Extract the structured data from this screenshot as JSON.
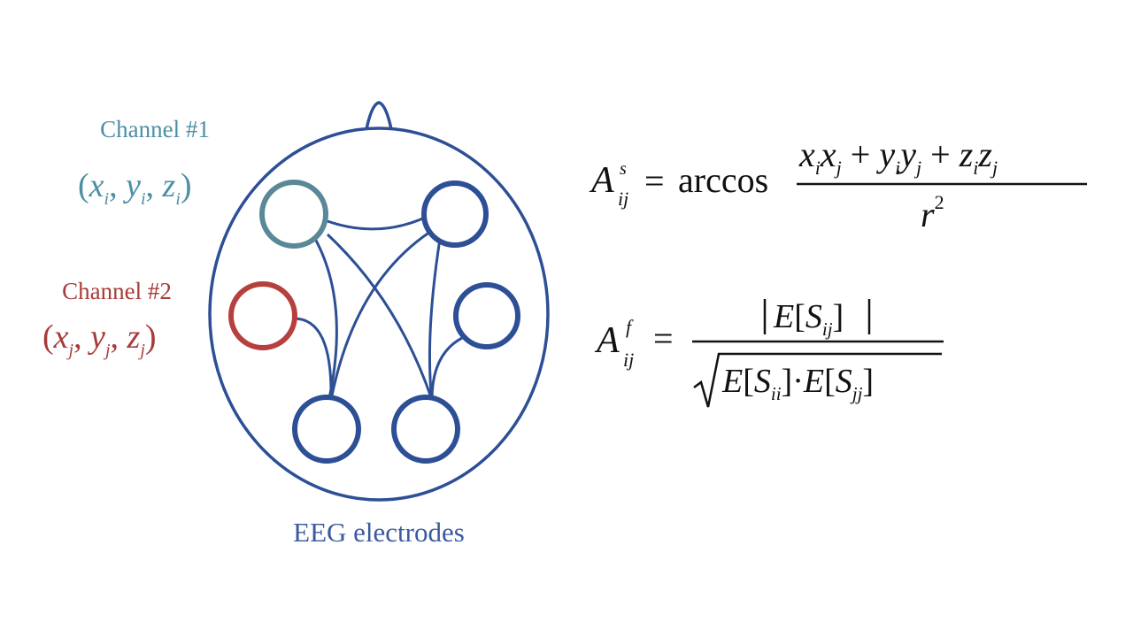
{
  "head_label": "EEG electrodes",
  "channel1": {
    "title": "Channel #1",
    "coords": "(xi , yi , zi)",
    "color": "#4b8fa6"
  },
  "channel2": {
    "title": "Channel #2",
    "coords": "(xj , yj , zj)",
    "color": "#a83a3a"
  },
  "colors": {
    "head": "#2d4f96",
    "electrode": "#2d4f96",
    "electrode_ch1": "#5b8898",
    "electrode_ch2": "#b5403e",
    "label": "#3a5aa0"
  },
  "formulas": {
    "spatial": {
      "lhs": "A_ij^s",
      "operator": "arccos",
      "numerator": "x_i x_j + y_i y_j + z_i z_j",
      "denominator": "r^2"
    },
    "functional": {
      "lhs": "A_ij^f",
      "numerator": "|E[S_ij]|",
      "denominator": "sqrt(E[S_ii] · E[S_jj])"
    }
  }
}
